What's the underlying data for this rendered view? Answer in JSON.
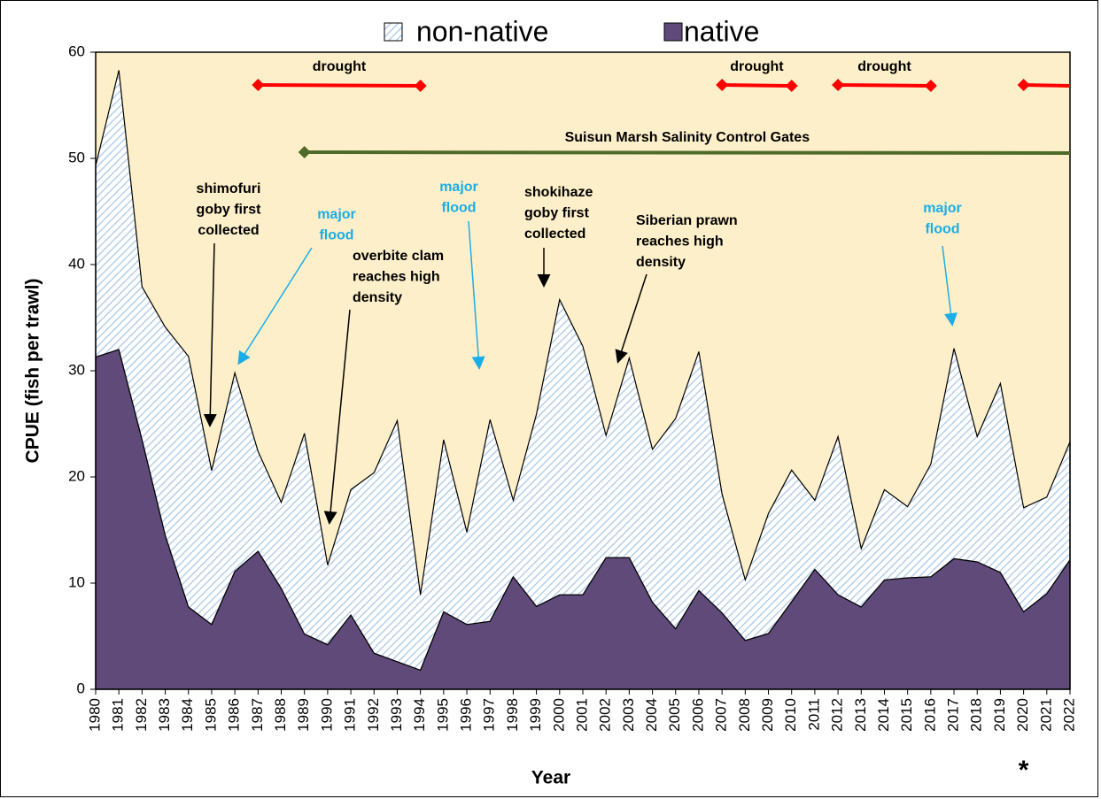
{
  "chart_data": {
    "type": "stacked-area",
    "x_label": "Year",
    "y_label": "CPUE (fish per trawl)",
    "x": [
      1980,
      1981,
      1982,
      1983,
      1984,
      1985,
      1986,
      1987,
      1988,
      1989,
      1990,
      1991,
      1992,
      1993,
      1994,
      1995,
      1996,
      1997,
      1998,
      1999,
      2000,
      2001,
      2002,
      2003,
      2004,
      2005,
      2006,
      2007,
      2008,
      2009,
      2010,
      2011,
      2012,
      2013,
      2014,
      2015,
      2016,
      2017,
      2018,
      2019,
      2020,
      2021,
      2022
    ],
    "xlim": [
      1980,
      2022
    ],
    "ylim": [
      0,
      60
    ],
    "yticks": [
      0,
      10,
      20,
      30,
      40,
      50,
      60
    ],
    "background": "#fdefc9",
    "series": [
      {
        "name": "non-native",
        "color": "#a9c6e6",
        "pattern": "hatch",
        "values": [
          18.0,
          26.3,
          14.4,
          19.6,
          23.6,
          14.5,
          18.7,
          9.4,
          8.1,
          18.9,
          7.5,
          11.8,
          17.0,
          22.7,
          7.1,
          16.2,
          8.7,
          19.0,
          7.2,
          18.1,
          27.8,
          23.4,
          11.5,
          18.8,
          14.4,
          19.8,
          22.5,
          11.2,
          5.7,
          11.3,
          12.4,
          6.5,
          14.9,
          5.5,
          8.5,
          6.7,
          10.6,
          19.8,
          11.8,
          17.8,
          9.8,
          9.1,
          11.1
        ]
      },
      {
        "name": "native",
        "color": "#5f4a7a",
        "values": [
          31.3,
          32.0,
          23.5,
          14.5,
          7.75,
          6.1,
          11.1,
          13.0,
          9.5,
          5.2,
          4.2,
          7.0,
          3.4,
          2.6,
          1.8,
          7.3,
          6.1,
          6.4,
          10.6,
          7.8,
          8.9,
          8.9,
          12.4,
          12.4,
          8.2,
          5.7,
          9.3,
          7.2,
          4.6,
          5.25,
          8.25,
          11.3,
          8.9,
          7.75,
          10.3,
          10.5,
          10.6,
          12.3,
          12.0,
          11.0,
          7.3,
          9.0,
          12.2
        ]
      }
    ],
    "periods": [
      {
        "label": "drought",
        "start": 1987,
        "end": 1994,
        "color": "#ff0000"
      },
      {
        "label": "drought",
        "start": 2007,
        "end": 2010,
        "color": "#ff0000"
      },
      {
        "label": "drought",
        "start": 2012,
        "end": 2016,
        "color": "#ff0000"
      },
      {
        "start": 2020,
        "end": 2022,
        "color": "#ff0000"
      },
      {
        "label": "Suisun Marsh Salinity Control Gates",
        "start": 1989,
        "end": 2022,
        "color": "#4e6b2a"
      }
    ],
    "annotations": [
      {
        "lines": [
          "shimofuri",
          "goby first",
          "collected"
        ],
        "color": "#000000"
      },
      {
        "lines": [
          "major",
          "flood"
        ],
        "color": "#1aaee8"
      },
      {
        "lines": [
          "overbite clam",
          "reaches high",
          "density"
        ],
        "color": "#000000"
      },
      {
        "lines": [
          "major",
          "flood"
        ],
        "color": "#1aaee8"
      },
      {
        "lines": [
          "shokihaze",
          "goby first",
          "collected"
        ],
        "color": "#000000"
      },
      {
        "lines": [
          "Siberian prawn",
          "reaches high",
          "density"
        ],
        "color": "#000000"
      },
      {
        "lines": [
          "major",
          "flood"
        ],
        "color": "#1aaee8"
      }
    ],
    "footnote_marker": "*"
  }
}
